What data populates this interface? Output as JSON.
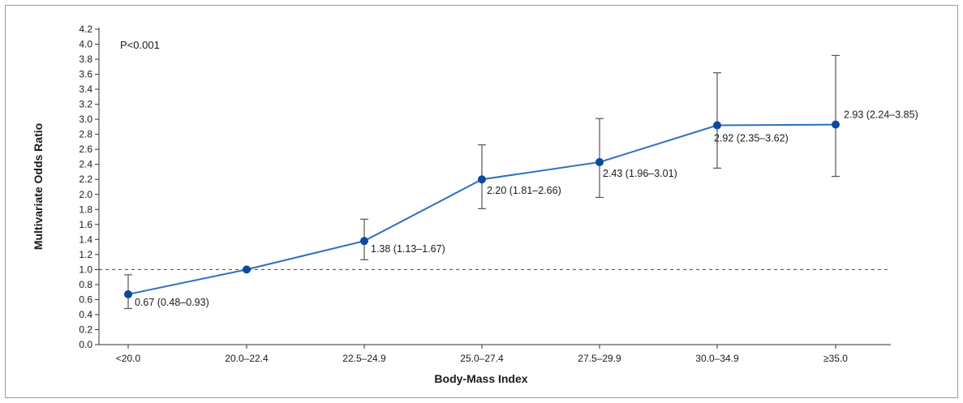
{
  "chart_data": {
    "type": "line",
    "title": "",
    "xlabel": "Body-Mass Index",
    "ylabel": "Multivariate Odds Ratio",
    "annotation": "P<0.001",
    "categories": [
      "<20.0",
      "20.0–22.4",
      "22.5–24.9",
      "25.0–27.4",
      "27.5–29.9",
      "30.0–34.9",
      "≥35.0"
    ],
    "series": [
      {
        "values": [
          0.67,
          1.0,
          1.38,
          2.2,
          2.43,
          2.92,
          2.93
        ],
        "ci_low": [
          0.48,
          null,
          1.13,
          1.81,
          1.96,
          2.35,
          2.24
        ],
        "ci_high": [
          0.93,
          null,
          1.67,
          2.66,
          3.01,
          3.62,
          3.85
        ],
        "labels": [
          "0.67 (0.48–0.93)",
          "",
          "1.38 (1.13–1.67)",
          "2.20 (1.81–2.66)",
          "2.43 (1.96–3.01)",
          "2.92 (2.35–3.62)",
          "2.93 (2.24–3.85)"
        ]
      }
    ],
    "reference_line": 1.0,
    "ylim": [
      0,
      4.2
    ],
    "yticks": [
      "0.0",
      "0.2",
      "0.4",
      "0.6",
      "0.8",
      "1.0",
      "1.2",
      "1.4",
      "1.6",
      "1.8",
      "2.0",
      "2.2",
      "2.4",
      "2.6",
      "2.8",
      "3.0",
      "3.2",
      "3.4",
      "3.6",
      "3.8",
      "4.0",
      "4.2"
    ],
    "grid": false,
    "colors": {
      "line": "#2d6fc1",
      "marker": "#0d4a9a",
      "axis": "#333333",
      "error_bar": "#555555"
    }
  }
}
